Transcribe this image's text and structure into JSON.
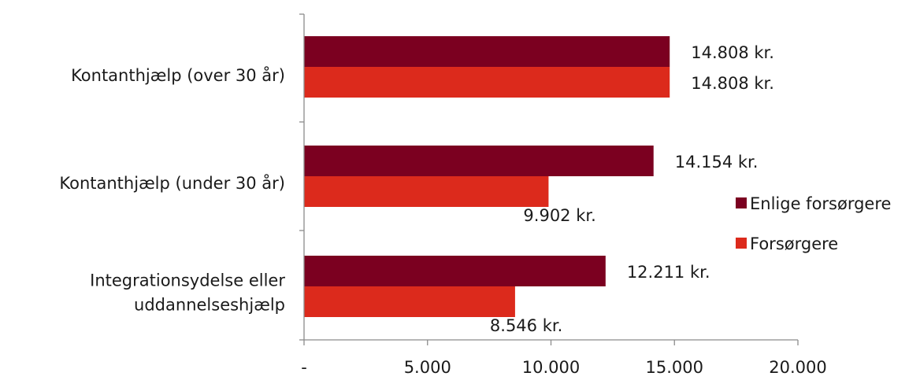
{
  "chart_data": {
    "type": "bar",
    "orientation": "horizontal",
    "categories": [
      [
        "Kontanthjælp (over 30 år)"
      ],
      [
        "Kontanthjælp (under 30 år)"
      ],
      [
        "Integrationsydelse eller",
        "uddannelseshjælp"
      ]
    ],
    "series": [
      {
        "name": "Enlige forsørgere",
        "color": "#7b0020",
        "values": [
          14808,
          14154,
          12211
        ],
        "labels": [
          "14.808 kr.",
          "14.154 kr.",
          "12.211 kr."
        ]
      },
      {
        "name": "Forsørgere",
        "color": "#dc2a1c",
        "values": [
          14808,
          9902,
          8546
        ],
        "labels": [
          "14.808 kr.",
          "9.902 kr.",
          "8.546 kr."
        ]
      }
    ],
    "xlim": [
      0,
      20000
    ],
    "xticks": [
      0,
      5000,
      10000,
      15000,
      20000
    ],
    "xtick_labels": [
      "-",
      "5.000",
      "10.000",
      "15.000",
      "20.000"
    ],
    "grid": false,
    "legend_position": "right"
  }
}
